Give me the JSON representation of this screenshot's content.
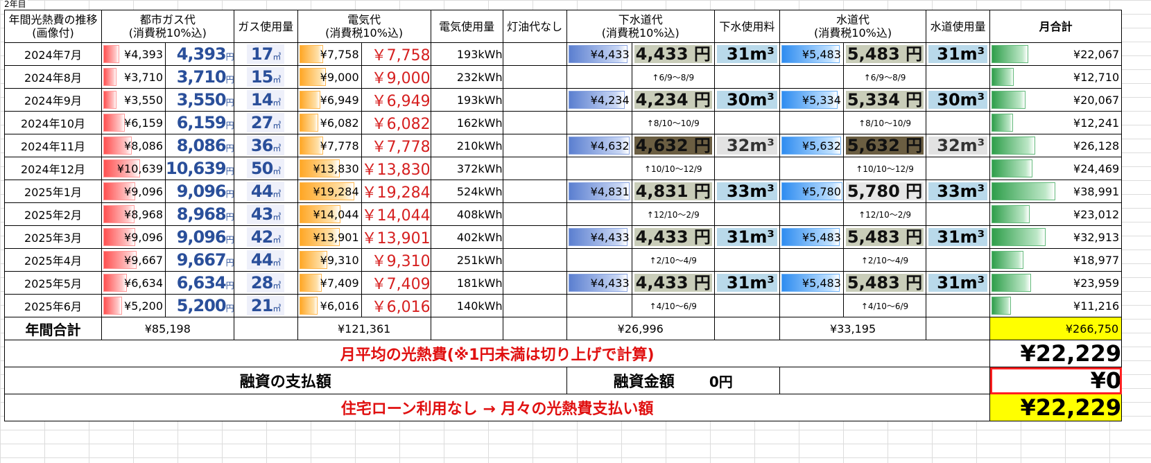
{
  "sheet_label": "2年目",
  "headers": {
    "period": "年間光熱費の推移(画像付)",
    "gas": "都市ガス代\n(消費税10%込)",
    "gas_usage": "ガス使用量",
    "elec": "電気代\n(消費税10%込)",
    "elec_usage": "電気使用量",
    "kerosene": "灯油代なし",
    "sewer": "下水道代\n(消費税10%込)",
    "sewer_usage": "下水使用料",
    "water": "水道代\n(消費税10%込)",
    "water_usage": "水道使用量",
    "monthly_total": "月合計"
  },
  "rows": [
    {
      "month": "2024年7月",
      "gas": "¥4,393",
      "gas_img": "4,393",
      "gas_img_unit": "円",
      "gas_use": "17",
      "gas_use_unit": "㎥",
      "elec": "¥7,758",
      "elec_img": "￥7,758",
      "kwh": "193kWh",
      "sewer": "¥4,433",
      "sewer_img": "4,433 円",
      "sewer_use": "31m³",
      "water": "¥5,483",
      "water_img": "5,483 円",
      "water_use": "31m³",
      "total": "¥22,067",
      "bars": {
        "gas": 0.24,
        "elec": 0.37,
        "sew": 0.96,
        "wat": 0.95,
        "tot": 0.57
      }
    },
    {
      "month": "2024年8月",
      "gas": "¥3,710",
      "gas_img": "3,710",
      "gas_img_unit": "円",
      "gas_use": "15",
      "gas_use_unit": "㎥",
      "elec": "¥9,000",
      "elec_img": "￥9,000",
      "kwh": "232kWh",
      "period": "↑6/9～8/9",
      "total": "¥12,710",
      "bars": {
        "gas": 0.2,
        "elec": 0.42,
        "tot": 0.33
      }
    },
    {
      "month": "2024年9月",
      "gas": "¥3,550",
      "gas_img": "3,550",
      "gas_img_unit": "円",
      "gas_use": "14",
      "gas_use_unit": "㎥",
      "elec": "¥6,949",
      "elec_img": "￥6,949",
      "kwh": "193kWh",
      "sewer": "¥4,234",
      "sewer_img": "4,234 円",
      "sewer_use": "30m³",
      "water": "¥5,334",
      "water_img": "5,334 円",
      "water_use": "30m³",
      "total": "¥20,067",
      "bars": {
        "gas": 0.2,
        "elec": 0.33,
        "sew": 0.92,
        "wat": 0.92,
        "tot": 0.52
      }
    },
    {
      "month": "2024年10月",
      "gas": "¥6,159",
      "gas_img": "6,159",
      "gas_img_unit": "円",
      "gas_use": "27",
      "gas_use_unit": "㎥",
      "elec": "¥6,082",
      "elec_img": "￥6,082",
      "kwh": "162kWh",
      "period": "↑8/10～10/9",
      "total": "¥12,241",
      "bars": {
        "gas": 0.34,
        "elec": 0.29,
        "tot": 0.32
      }
    },
    {
      "month": "2024年11月",
      "gas": "¥8,086",
      "gas_img": "8,086",
      "gas_img_unit": "円",
      "gas_use": "36",
      "gas_use_unit": "㎥",
      "elec": "¥7,778",
      "elec_img": "￥7,778",
      "kwh": "210kWh",
      "sewer": "¥4,632",
      "sewer_img": "4,632 円",
      "sewer_use": "32m³",
      "water": "¥5,632",
      "water_img": "5,632 円",
      "water_use": "32m³",
      "total": "¥26,128",
      "bars": {
        "gas": 0.45,
        "elec": 0.37,
        "sew": 1.0,
        "wat": 0.98,
        "tot": 0.68
      },
      "dark": true
    },
    {
      "month": "2024年12月",
      "gas": "¥10,639",
      "gas_img": "10,639",
      "gas_img_unit": "円",
      "gas_use": "50",
      "gas_use_unit": "㎥",
      "elec": "¥13,830",
      "elec_img": "￥13,830",
      "kwh": "372kWh",
      "period": "↑10/10～12/9",
      "total": "¥24,469",
      "bars": {
        "gas": 0.59,
        "elec": 0.65,
        "tot": 0.63
      }
    },
    {
      "month": "2025年1月",
      "gas": "¥9,096",
      "gas_img": "9,096",
      "gas_img_unit": "円",
      "gas_use": "44",
      "gas_use_unit": "㎥",
      "elec": "¥19,284",
      "elec_img": "￥19,284",
      "kwh": "524kWh",
      "sewer": "¥4,831",
      "sewer_img": "4,831 円",
      "sewer_use": "33m³",
      "water": "¥5,780",
      "water_img": "5,780 円",
      "water_use": "33m³",
      "total": "¥38,991",
      "bars": {
        "gas": 0.51,
        "elec": 0.9,
        "sew": 1.0,
        "wat": 1.0,
        "tot": 1.0
      },
      "grey": true
    },
    {
      "month": "2025年2月",
      "gas": "¥8,968",
      "gas_img": "8,968",
      "gas_img_unit": "円",
      "gas_use": "43",
      "gas_use_unit": "㎥",
      "elec": "¥14,044",
      "elec_img": "￥14,044",
      "kwh": "408kWh",
      "period": "↑12/10～2/9",
      "total": "¥23,012",
      "bars": {
        "gas": 0.5,
        "elec": 0.66,
        "tot": 0.59
      }
    },
    {
      "month": "2025年3月",
      "gas": "¥9,096",
      "gas_img": "9,096",
      "gas_img_unit": "円",
      "gas_use": "42",
      "gas_use_unit": "㎥",
      "elec": "¥13,901",
      "elec_img": "￥13,901",
      "kwh": "402kWh",
      "sewer": "¥4,433",
      "sewer_img": "4,433 円",
      "sewer_use": "31m³",
      "water": "¥5,483",
      "water_img": "5,483 円",
      "water_use": "31m³",
      "total": "¥32,913",
      "bars": {
        "gas": 0.51,
        "elec": 0.65,
        "sew": 0.96,
        "wat": 0.95,
        "tot": 0.84
      }
    },
    {
      "month": "2025年4月",
      "gas": "¥9,667",
      "gas_img": "9,667",
      "gas_img_unit": "円",
      "gas_use": "44",
      "gas_use_unit": "㎥",
      "elec": "¥9,310",
      "elec_img": "￥9,310",
      "kwh": "251kWh",
      "period": "↑2/10～4/9",
      "total": "¥18,977",
      "bars": {
        "gas": 0.54,
        "elec": 0.44,
        "tot": 0.49
      }
    },
    {
      "month": "2025年5月",
      "gas": "¥6,634",
      "gas_img": "6,634",
      "gas_img_unit": "円",
      "gas_use": "28",
      "gas_use_unit": "㎥",
      "elec": "¥7,409",
      "elec_img": "￥7,409",
      "kwh": "181kWh",
      "sewer": "¥4,433",
      "sewer_img": "4,433 円",
      "sewer_use": "31m³",
      "water": "¥5,483",
      "water_img": "5,483 円",
      "water_use": "31m³",
      "total": "¥23,959",
      "bars": {
        "gas": 0.37,
        "elec": 0.35,
        "sew": 0.96,
        "wat": 0.95,
        "tot": 0.61
      }
    },
    {
      "month": "2025年6月",
      "gas": "¥5,200",
      "gas_img": "5,200",
      "gas_img_unit": "円",
      "gas_use": "21",
      "gas_use_unit": "㎥",
      "elec": "¥6,016",
      "elec_img": "￥6,016",
      "kwh": "140kWh",
      "period": "↑4/10～6/9",
      "total": "¥11,216",
      "bars": {
        "gas": 0.29,
        "elec": 0.28,
        "tot": 0.29
      }
    }
  ],
  "annual": {
    "label": "年間合計",
    "gas": "¥85,198",
    "elec": "¥121,361",
    "sewer": "¥26,996",
    "water": "¥33,195",
    "total": "¥266,750"
  },
  "average": {
    "label": "月平均の光熱費(※1円未満は切り上げで計算)",
    "value": "¥22,229"
  },
  "loan": {
    "label": "融資の支払額",
    "amount_label": "融資金額",
    "amount_value": "0円",
    "value": "¥0"
  },
  "final": {
    "label": "住宅ローン利用なし → 月々の光熱費支払い額",
    "value": "¥22,229"
  },
  "colors": {
    "highlight": "#ffff00",
    "red_text": "#e01010",
    "gas_bar": "#ff5050",
    "elec_bar": "#ffa726",
    "sewer_bar": "#5b7fd0",
    "water_bar": "#2e8cf0",
    "total_bar": "#2e9e4a"
  }
}
